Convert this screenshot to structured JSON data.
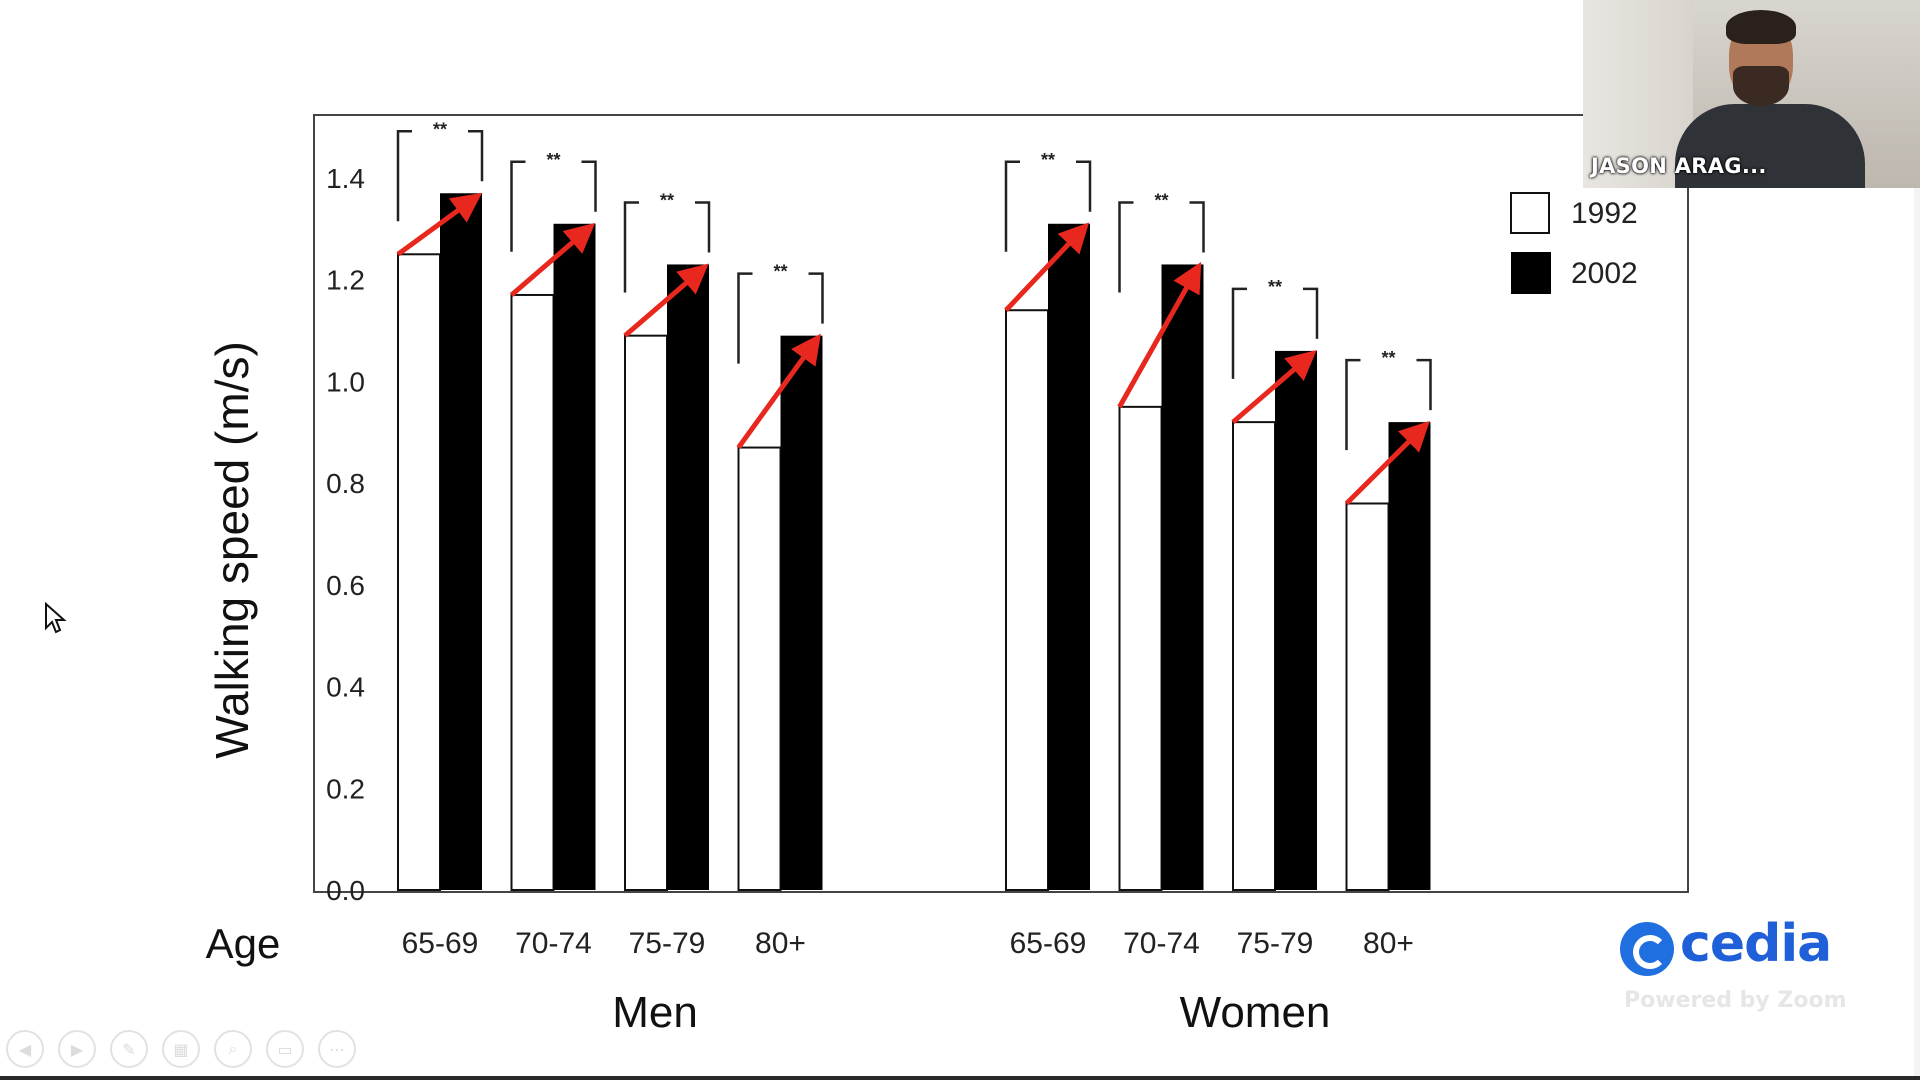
{
  "chart_data": {
    "type": "bar",
    "title": "",
    "xlabel": "Age",
    "ylabel": "Walking speed (m/s)",
    "ylim": [
      0,
      1.5
    ],
    "yticks": [
      "0.0",
      "0.2",
      "0.4",
      "0.6",
      "0.8",
      "1.0",
      "1.2",
      "1.4"
    ],
    "groups": [
      "Men",
      "Women"
    ],
    "categories": [
      "65-69",
      "70-74",
      "75-79",
      "80+"
    ],
    "series": [
      {
        "name": "1992",
        "color": "#ffffff",
        "men": [
          1.25,
          1.17,
          1.09,
          0.87
        ],
        "women": [
          1.14,
          0.95,
          0.92,
          0.76
        ]
      },
      {
        "name": "2002",
        "color": "#000000",
        "men": [
          1.37,
          1.31,
          1.23,
          1.09
        ],
        "women": [
          1.31,
          1.23,
          1.06,
          0.92
        ]
      }
    ],
    "significance_marker": "**",
    "legend_position": "top-right",
    "annotations": "red arrows from 1992 bar top to 2002 bar top",
    "arrow_color": "#e8281e",
    "grid": false
  },
  "video": {
    "participant_name": "JASON ARAG..."
  },
  "branding": {
    "logo_text": "cedia",
    "powered_by": "Powered by Zoom",
    "brand_color": "#1f5fd8"
  },
  "toolbar": {
    "buttons": [
      {
        "icon": "previous-icon",
        "glyph": "◀"
      },
      {
        "icon": "next-icon",
        "glyph": "▶"
      },
      {
        "icon": "pen-icon",
        "glyph": "✎"
      },
      {
        "icon": "slides-icon",
        "glyph": "▦"
      },
      {
        "icon": "zoom-icon",
        "glyph": "⌕"
      },
      {
        "icon": "subtitles-icon",
        "glyph": "▭"
      },
      {
        "icon": "more-icon",
        "glyph": "⋯"
      }
    ]
  }
}
